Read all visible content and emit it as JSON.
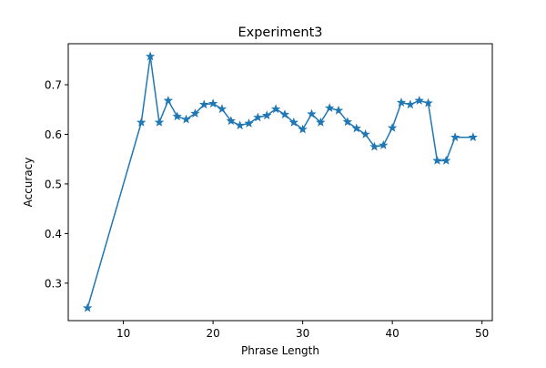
{
  "chart_data": {
    "type": "line",
    "title": "Experiment3",
    "xlabel": "Phrase Length",
    "ylabel": "Accuracy",
    "xlim": [
      3.85,
      51.15
    ],
    "ylim": [
      0.2245,
      0.7826
    ],
    "xticks": [
      10,
      20,
      30,
      40,
      50
    ],
    "yticks": [
      0.3,
      0.4,
      0.5,
      0.6,
      0.7
    ],
    "xtick_labels": [
      "10",
      "20",
      "30",
      "40",
      "50"
    ],
    "ytick_labels": [
      "0.3",
      "0.4",
      "0.5",
      "0.6",
      "0.7"
    ],
    "grid": false,
    "marker": "star",
    "series": [
      {
        "color": "#1f77b4",
        "x": [
          6,
          12,
          13,
          14,
          15,
          16,
          17,
          18,
          19,
          20,
          21,
          22,
          23,
          24,
          25,
          26,
          27,
          28,
          29,
          30,
          31,
          32,
          33,
          34,
          35,
          36,
          37,
          38,
          39,
          40,
          41,
          42,
          43,
          44,
          45,
          46,
          47,
          49
        ],
        "y": [
          0.25,
          0.624,
          0.757,
          0.624,
          0.668,
          0.636,
          0.63,
          0.642,
          0.66,
          0.662,
          0.651,
          0.627,
          0.618,
          0.622,
          0.634,
          0.638,
          0.651,
          0.64,
          0.624,
          0.61,
          0.641,
          0.624,
          0.653,
          0.648,
          0.625,
          0.612,
          0.6,
          0.575,
          0.578,
          0.613,
          0.664,
          0.66,
          0.668,
          0.663,
          0.547,
          0.547,
          0.594,
          0.594
        ]
      }
    ]
  }
}
